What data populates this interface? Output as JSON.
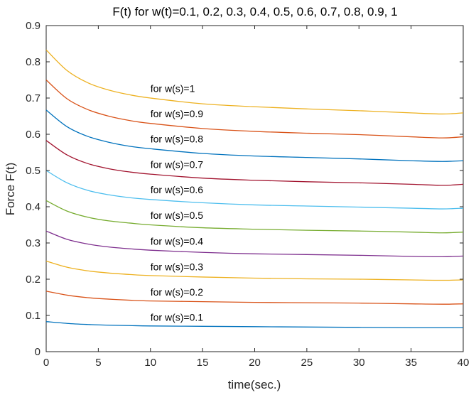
{
  "chart_data": {
    "type": "line",
    "title": "F(t) for w(t)=0.1, 0.2, 0.3, 0.4, 0.5, 0.6, 0.7, 0.8, 0.9, 1",
    "xlabel": "time(sec.)",
    "ylabel": "Force F(t)",
    "xlim": [
      0,
      40
    ],
    "ylim": [
      0,
      0.9
    ],
    "xticks": [
      0,
      5,
      10,
      15,
      20,
      25,
      30,
      35,
      40
    ],
    "yticks": [
      0,
      0.1,
      0.2,
      0.3,
      0.4,
      0.5,
      0.6,
      0.7,
      0.8,
      0.9
    ],
    "grid": false,
    "x": [
      0,
      2,
      4,
      6,
      8,
      10,
      15,
      20,
      25,
      30,
      35,
      38,
      40
    ],
    "series": [
      {
        "name": "w=0.1",
        "color": "#0072bd",
        "values": [
          0.083,
          0.078,
          0.075,
          0.073,
          0.072,
          0.071,
          0.07,
          0.069,
          0.068,
          0.067,
          0.066,
          0.066,
          0.066
        ]
      },
      {
        "name": "w=0.2",
        "color": "#d95319",
        "values": [
          0.167,
          0.156,
          0.149,
          0.145,
          0.142,
          0.14,
          0.138,
          0.136,
          0.135,
          0.134,
          0.132,
          0.131,
          0.132
        ]
      },
      {
        "name": "w=0.3",
        "color": "#edb120",
        "values": [
          0.25,
          0.233,
          0.223,
          0.217,
          0.213,
          0.21,
          0.206,
          0.203,
          0.201,
          0.2,
          0.198,
          0.197,
          0.198
        ]
      },
      {
        "name": "w=0.4",
        "color": "#7e2f8e",
        "values": [
          0.333,
          0.31,
          0.297,
          0.289,
          0.284,
          0.28,
          0.274,
          0.27,
          0.268,
          0.266,
          0.263,
          0.262,
          0.264
        ]
      },
      {
        "name": "w=0.5",
        "color": "#77ac30",
        "values": [
          0.417,
          0.388,
          0.371,
          0.361,
          0.355,
          0.35,
          0.342,
          0.338,
          0.335,
          0.333,
          0.33,
          0.328,
          0.33
        ]
      },
      {
        "name": "w=0.6",
        "color": "#4dbeee",
        "values": [
          0.5,
          0.466,
          0.445,
          0.433,
          0.425,
          0.42,
          0.411,
          0.405,
          0.402,
          0.399,
          0.396,
          0.394,
          0.396
        ]
      },
      {
        "name": "w=0.7",
        "color": "#a2142f",
        "values": [
          0.583,
          0.543,
          0.519,
          0.505,
          0.496,
          0.49,
          0.479,
          0.473,
          0.469,
          0.466,
          0.462,
          0.459,
          0.462
        ]
      },
      {
        "name": "w=0.8",
        "color": "#0072bd",
        "values": [
          0.667,
          0.621,
          0.594,
          0.578,
          0.567,
          0.56,
          0.547,
          0.54,
          0.536,
          0.532,
          0.527,
          0.525,
          0.527
        ]
      },
      {
        "name": "w=0.9",
        "color": "#d95319",
        "values": [
          0.75,
          0.698,
          0.668,
          0.65,
          0.638,
          0.63,
          0.616,
          0.608,
          0.603,
          0.599,
          0.593,
          0.59,
          0.593
        ]
      },
      {
        "name": "w=1",
        "color": "#edb120",
        "values": [
          0.833,
          0.776,
          0.742,
          0.722,
          0.709,
          0.7,
          0.684,
          0.676,
          0.67,
          0.665,
          0.659,
          0.656,
          0.659
        ]
      }
    ],
    "annotations": [
      {
        "text": "for w(s)=0.1",
        "x": 10,
        "y": 0.085
      },
      {
        "text": "for w(s)=0.2",
        "x": 10,
        "y": 0.155
      },
      {
        "text": "for w(s)=0.3",
        "x": 10,
        "y": 0.225
      },
      {
        "text": "for w(s)=0.4",
        "x": 10,
        "y": 0.295
      },
      {
        "text": "for w(s)=0.5",
        "x": 10,
        "y": 0.367
      },
      {
        "text": "for w(s)=0.6",
        "x": 10,
        "y": 0.437
      },
      {
        "text": "for w(s)=0.7",
        "x": 10,
        "y": 0.507
      },
      {
        "text": "for w(s)=0.8",
        "x": 10,
        "y": 0.577
      },
      {
        "text": "for w(s)=0.9",
        "x": 10,
        "y": 0.647
      },
      {
        "text": "for w(s)=1",
        "x": 10,
        "y": 0.717
      }
    ]
  }
}
